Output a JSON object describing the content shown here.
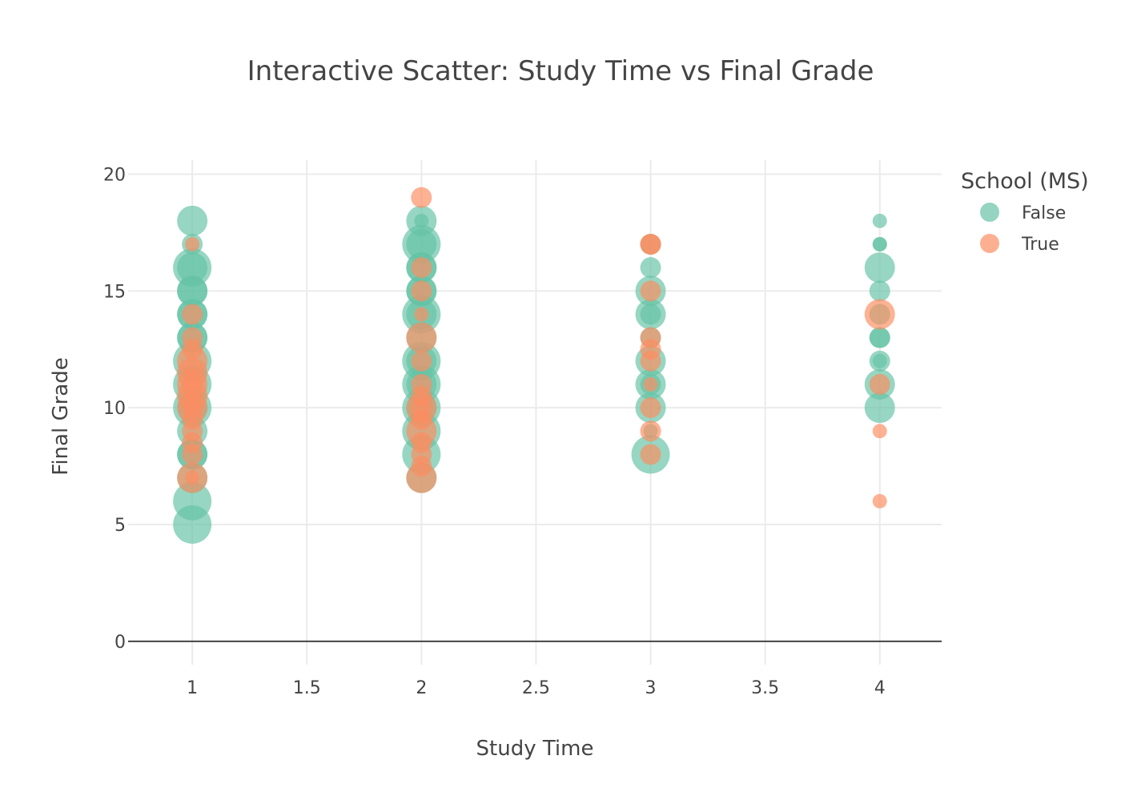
{
  "chart_data": {
    "type": "scatter",
    "title": "Interactive Scatter: Study Time vs Final Grade",
    "xlabel": "Study Time",
    "ylabel": "Final Grade",
    "xlim": [
      0.72,
      4.27
    ],
    "ylim": [
      -1,
      20.6
    ],
    "x_ticks": [
      1,
      1.5,
      2,
      2.5,
      3,
      3.5,
      4
    ],
    "x_tick_labels": [
      "1",
      "1.5",
      "2",
      "2.5",
      "3",
      "3.5",
      "4"
    ],
    "y_ticks": [
      0,
      5,
      10,
      15,
      20
    ],
    "y_tick_labels": [
      "0",
      "5",
      "10",
      "15",
      "20"
    ],
    "grid": true,
    "legend": {
      "title": "School (MS)",
      "placement": "top-right",
      "entries": [
        "False",
        "True"
      ]
    },
    "series": [
      {
        "name": "False",
        "color": "#66c2a5",
        "points": [
          {
            "x": 1,
            "y": 5,
            "size": 3
          },
          {
            "x": 1,
            "y": 6,
            "size": 3
          },
          {
            "x": 1,
            "y": 7,
            "size": 2
          },
          {
            "x": 1,
            "y": 8,
            "size": 2
          },
          {
            "x": 1,
            "y": 8,
            "size": 2
          },
          {
            "x": 1,
            "y": 9,
            "size": 2
          },
          {
            "x": 1,
            "y": 10,
            "size": 2
          },
          {
            "x": 1,
            "y": 10,
            "size": 3
          },
          {
            "x": 1,
            "y": 11,
            "size": 3
          },
          {
            "x": 1,
            "y": 12,
            "size": 3
          },
          {
            "x": 1,
            "y": 13,
            "size": 2
          },
          {
            "x": 1,
            "y": 13,
            "size": 2
          },
          {
            "x": 1,
            "y": 14,
            "size": 2
          },
          {
            "x": 1,
            "y": 14,
            "size": 2
          },
          {
            "x": 1,
            "y": 15,
            "size": 2
          },
          {
            "x": 1,
            "y": 15,
            "size": 2
          },
          {
            "x": 1,
            "y": 16,
            "size": 3
          },
          {
            "x": 1,
            "y": 16,
            "size": 2
          },
          {
            "x": 1,
            "y": 17,
            "size": 1
          },
          {
            "x": 1,
            "y": 18,
            "size": 2
          },
          {
            "x": 2,
            "y": 7,
            "size": 2
          },
          {
            "x": 2,
            "y": 8,
            "size": 3
          },
          {
            "x": 2,
            "y": 9,
            "size": 3
          },
          {
            "x": 2,
            "y": 10,
            "size": 3
          },
          {
            "x": 2,
            "y": 10,
            "size": 2
          },
          {
            "x": 2,
            "y": 11,
            "size": 3
          },
          {
            "x": 2,
            "y": 11,
            "size": 2
          },
          {
            "x": 2,
            "y": 12,
            "size": 3
          },
          {
            "x": 2,
            "y": 12,
            "size": 2
          },
          {
            "x": 2,
            "y": 13,
            "size": 2
          },
          {
            "x": 2,
            "y": 14,
            "size": 3
          },
          {
            "x": 2,
            "y": 14,
            "size": 2
          },
          {
            "x": 2,
            "y": 15,
            "size": 2
          },
          {
            "x": 2,
            "y": 15,
            "size": 2
          },
          {
            "x": 2,
            "y": 16,
            "size": 2
          },
          {
            "x": 2,
            "y": 16,
            "size": 2
          },
          {
            "x": 2,
            "y": 17,
            "size": 3
          },
          {
            "x": 2,
            "y": 17,
            "size": 2
          },
          {
            "x": 2,
            "y": 18,
            "size": 2
          },
          {
            "x": 2,
            "y": 18,
            "size": 0
          },
          {
            "x": 3,
            "y": 8,
            "size": 3
          },
          {
            "x": 3,
            "y": 9,
            "size": 0
          },
          {
            "x": 3,
            "y": 10,
            "size": 2
          },
          {
            "x": 3,
            "y": 11,
            "size": 2
          },
          {
            "x": 3,
            "y": 11,
            "size": 1
          },
          {
            "x": 3,
            "y": 12,
            "size": 2
          },
          {
            "x": 3,
            "y": 13,
            "size": 1
          },
          {
            "x": 3,
            "y": 14,
            "size": 2
          },
          {
            "x": 3,
            "y": 14,
            "size": 1
          },
          {
            "x": 3,
            "y": 15,
            "size": 2
          },
          {
            "x": 3,
            "y": 16,
            "size": 1
          },
          {
            "x": 3,
            "y": 17,
            "size": 1
          },
          {
            "x": 4,
            "y": 10,
            "size": 2
          },
          {
            "x": 4,
            "y": 11,
            "size": 2
          },
          {
            "x": 4,
            "y": 12,
            "size": 1
          },
          {
            "x": 4,
            "y": 12,
            "size": 0
          },
          {
            "x": 4,
            "y": 13,
            "size": 1
          },
          {
            "x": 4,
            "y": 13,
            "size": 1
          },
          {
            "x": 4,
            "y": 14,
            "size": 1
          },
          {
            "x": 4,
            "y": 15,
            "size": 1
          },
          {
            "x": 4,
            "y": 16,
            "size": 2
          },
          {
            "x": 4,
            "y": 17,
            "size": 0
          },
          {
            "x": 4,
            "y": 17,
            "size": 0
          },
          {
            "x": 4,
            "y": 18,
            "size": 0
          }
        ]
      },
      {
        "name": "True",
        "color": "#fc8d62",
        "points": [
          {
            "x": 1,
            "y": 7,
            "size": 2
          },
          {
            "x": 1,
            "y": 7,
            "size": 0
          },
          {
            "x": 1,
            "y": 8,
            "size": 1
          },
          {
            "x": 1,
            "y": 8.5,
            "size": 1
          },
          {
            "x": 1,
            "y": 9,
            "size": 1
          },
          {
            "x": 1,
            "y": 9.5,
            "size": 1
          },
          {
            "x": 1,
            "y": 10,
            "size": 2
          },
          {
            "x": 1,
            "y": 10,
            "size": 1
          },
          {
            "x": 1,
            "y": 10.5,
            "size": 2
          },
          {
            "x": 1,
            "y": 11,
            "size": 2
          },
          {
            "x": 1,
            "y": 11,
            "size": 1
          },
          {
            "x": 1,
            "y": 11.5,
            "size": 2
          },
          {
            "x": 1,
            "y": 12,
            "size": 2
          },
          {
            "x": 1,
            "y": 12.5,
            "size": 1
          },
          {
            "x": 1,
            "y": 13,
            "size": 1
          },
          {
            "x": 1,
            "y": 14,
            "size": 1
          },
          {
            "x": 1,
            "y": 17,
            "size": 0
          },
          {
            "x": 2,
            "y": 7,
            "size": 2
          },
          {
            "x": 2,
            "y": 7.5,
            "size": 1
          },
          {
            "x": 2,
            "y": 8,
            "size": 1
          },
          {
            "x": 2,
            "y": 8.5,
            "size": 1
          },
          {
            "x": 2,
            "y": 9,
            "size": 2
          },
          {
            "x": 2,
            "y": 9.5,
            "size": 1
          },
          {
            "x": 2,
            "y": 10,
            "size": 2
          },
          {
            "x": 2,
            "y": 10,
            "size": 1
          },
          {
            "x": 2,
            "y": 10.5,
            "size": 1
          },
          {
            "x": 2,
            "y": 11,
            "size": 1
          },
          {
            "x": 2,
            "y": 12,
            "size": 1
          },
          {
            "x": 2,
            "y": 13,
            "size": 2
          },
          {
            "x": 2,
            "y": 14,
            "size": 0
          },
          {
            "x": 2,
            "y": 15,
            "size": 1
          },
          {
            "x": 2,
            "y": 16,
            "size": 1
          },
          {
            "x": 2,
            "y": 19,
            "size": 1
          },
          {
            "x": 3,
            "y": 8,
            "size": 1
          },
          {
            "x": 3,
            "y": 9,
            "size": 1
          },
          {
            "x": 3,
            "y": 10,
            "size": 1
          },
          {
            "x": 3,
            "y": 11,
            "size": 0
          },
          {
            "x": 3,
            "y": 12,
            "size": 1
          },
          {
            "x": 3,
            "y": 12.5,
            "size": 1
          },
          {
            "x": 3,
            "y": 13,
            "size": 1
          },
          {
            "x": 3,
            "y": 15,
            "size": 1
          },
          {
            "x": 3,
            "y": 17,
            "size": 1
          },
          {
            "x": 3,
            "y": 17,
            "size": 1
          },
          {
            "x": 4,
            "y": 6,
            "size": 0
          },
          {
            "x": 4,
            "y": 9,
            "size": 0
          },
          {
            "x": 4,
            "y": 11,
            "size": 1
          },
          {
            "x": 4,
            "y": 14,
            "size": 2
          }
        ]
      }
    ]
  }
}
